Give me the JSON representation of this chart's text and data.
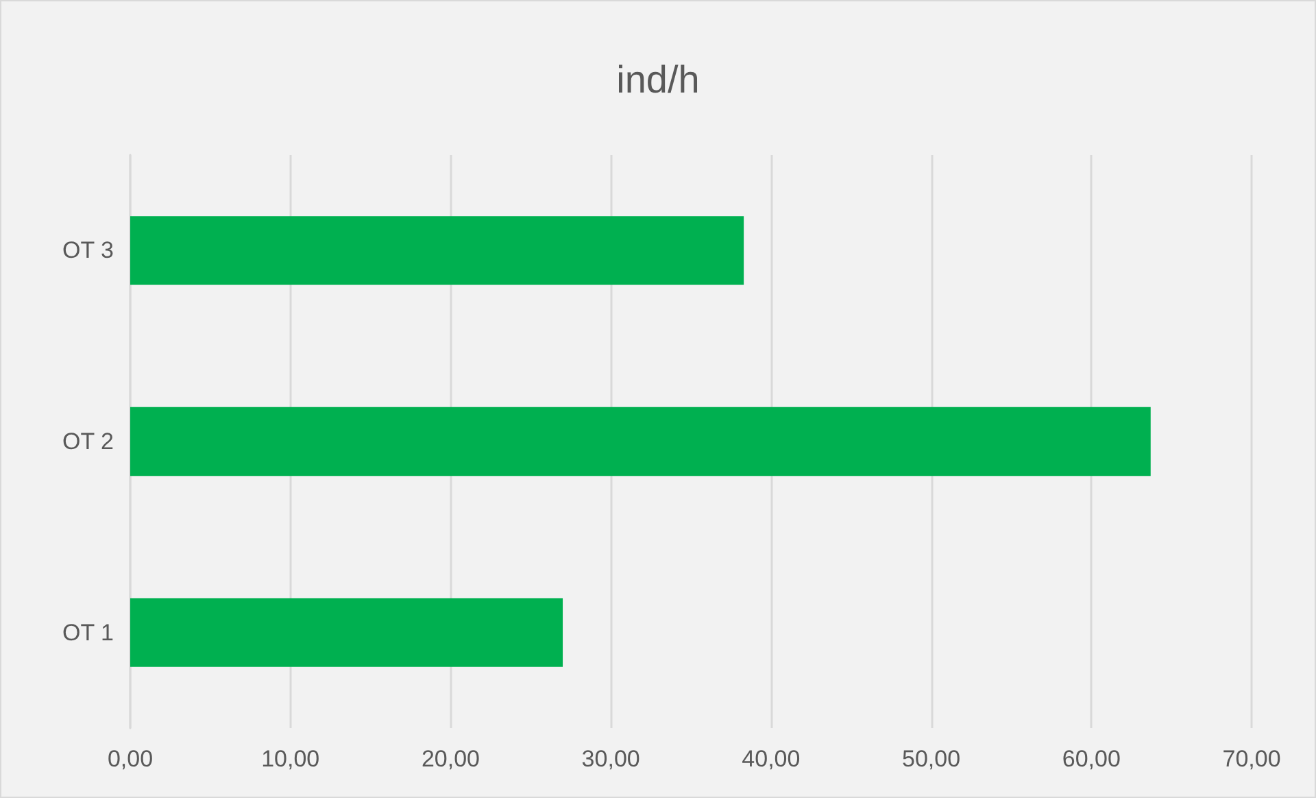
{
  "chart_data": {
    "type": "bar",
    "title": "ind/h",
    "orientation": "horizontal",
    "categories": [
      "OT 3",
      "OT 2",
      "OT 1"
    ],
    "series": [
      {
        "color": "#00b050",
        "values": [
          38.3,
          63.7,
          27.0
        ]
      }
    ],
    "xlim": [
      0,
      70
    ],
    "xticks": [
      {
        "value": 0,
        "label": "0,00"
      },
      {
        "value": 10,
        "label": "10,00"
      },
      {
        "value": 20,
        "label": "20,00"
      },
      {
        "value": 30,
        "label": "30,00"
      },
      {
        "value": 40,
        "label": "40,00"
      },
      {
        "value": 50,
        "label": "50,00"
      },
      {
        "value": 60,
        "label": "60,00"
      },
      {
        "value": 70,
        "label": "70,00"
      }
    ],
    "grid": "x"
  }
}
